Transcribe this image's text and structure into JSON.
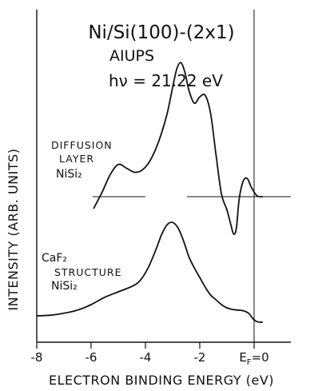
{
  "chart_data": {
    "type": "line",
    "title_lines": [
      "Ni/Si(100)-(2x1)",
      "AIUPS",
      "hν = 21.22 eV"
    ],
    "xlabel": "ELECTRON BINDING ENERGY (eV)",
    "ylabel": "INTENSITY (ARB. UNITS)",
    "xlim": [
      -8,
      0.5
    ],
    "x_tick_labels": [
      "-8",
      "-6",
      "-4",
      "-2",
      "E",
      "F",
      "=0"
    ],
    "fermi_label": {
      "main": "E",
      "sub": "F",
      "tail": "=0"
    },
    "grid": false,
    "legend": "none",
    "series": [
      {
        "label_lines": [
          "DIFFUSION",
          "LAYER",
          "NiSi₂"
        ],
        "baseline": 0,
        "points": [
          [
            -5.9,
            -0.22
          ],
          [
            -5.6,
            0.08
          ],
          [
            -5.3,
            0.42
          ],
          [
            -5.0,
            0.62
          ],
          [
            -4.7,
            0.55
          ],
          [
            -4.4,
            0.47
          ],
          [
            -4.1,
            0.52
          ],
          [
            -3.8,
            0.72
          ],
          [
            -3.5,
            1.08
          ],
          [
            -3.2,
            1.6
          ],
          [
            -3.0,
            2.1
          ],
          [
            -2.85,
            2.45
          ],
          [
            -2.7,
            2.58
          ],
          [
            -2.55,
            2.4
          ],
          [
            -2.4,
            2.05
          ],
          [
            -2.2,
            1.8
          ],
          [
            -2.0,
            1.92
          ],
          [
            -1.8,
            1.95
          ],
          [
            -1.6,
            1.6
          ],
          [
            -1.4,
            0.8
          ],
          [
            -1.2,
            0.05
          ],
          [
            -1.0,
            -0.25
          ],
          [
            -0.85,
            -0.55
          ],
          [
            -0.75,
            -0.72
          ],
          [
            -0.65,
            -0.6
          ],
          [
            -0.55,
            -0.05
          ],
          [
            -0.4,
            0.3
          ],
          [
            -0.25,
            0.35
          ],
          [
            -0.1,
            0.18
          ],
          [
            0.1,
            0.02
          ],
          [
            0.3,
            0.0
          ]
        ]
      },
      {
        "label_lines": [
          "CaF₂",
          "STRUCTURE",
          "NiSi₂"
        ],
        "baseline": 0,
        "points": [
          [
            -8.0,
            0.2
          ],
          [
            -7.5,
            0.22
          ],
          [
            -7.0,
            0.28
          ],
          [
            -6.5,
            0.38
          ],
          [
            -6.0,
            0.55
          ],
          [
            -5.5,
            0.78
          ],
          [
            -5.0,
            0.95
          ],
          [
            -4.5,
            1.12
          ],
          [
            -4.2,
            1.3
          ],
          [
            -3.9,
            1.7
          ],
          [
            -3.6,
            2.3
          ],
          [
            -3.4,
            2.75
          ],
          [
            -3.2,
            3.05
          ],
          [
            -3.0,
            3.12
          ],
          [
            -2.8,
            2.95
          ],
          [
            -2.6,
            2.55
          ],
          [
            -2.4,
            2.05
          ],
          [
            -2.2,
            1.7
          ],
          [
            -2.0,
            1.4
          ],
          [
            -1.8,
            1.1
          ],
          [
            -1.6,
            0.85
          ],
          [
            -1.4,
            0.7
          ],
          [
            -1.2,
            0.55
          ],
          [
            -1.0,
            0.45
          ],
          [
            -0.8,
            0.4
          ],
          [
            -0.6,
            0.38
          ],
          [
            -0.4,
            0.36
          ],
          [
            -0.2,
            0.28
          ],
          [
            -0.05,
            0.12
          ],
          [
            0.1,
            0.02
          ],
          [
            0.3,
            0.0
          ]
        ]
      }
    ],
    "style": {
      "line_color": "#111111",
      "background": "#ffffff"
    }
  }
}
